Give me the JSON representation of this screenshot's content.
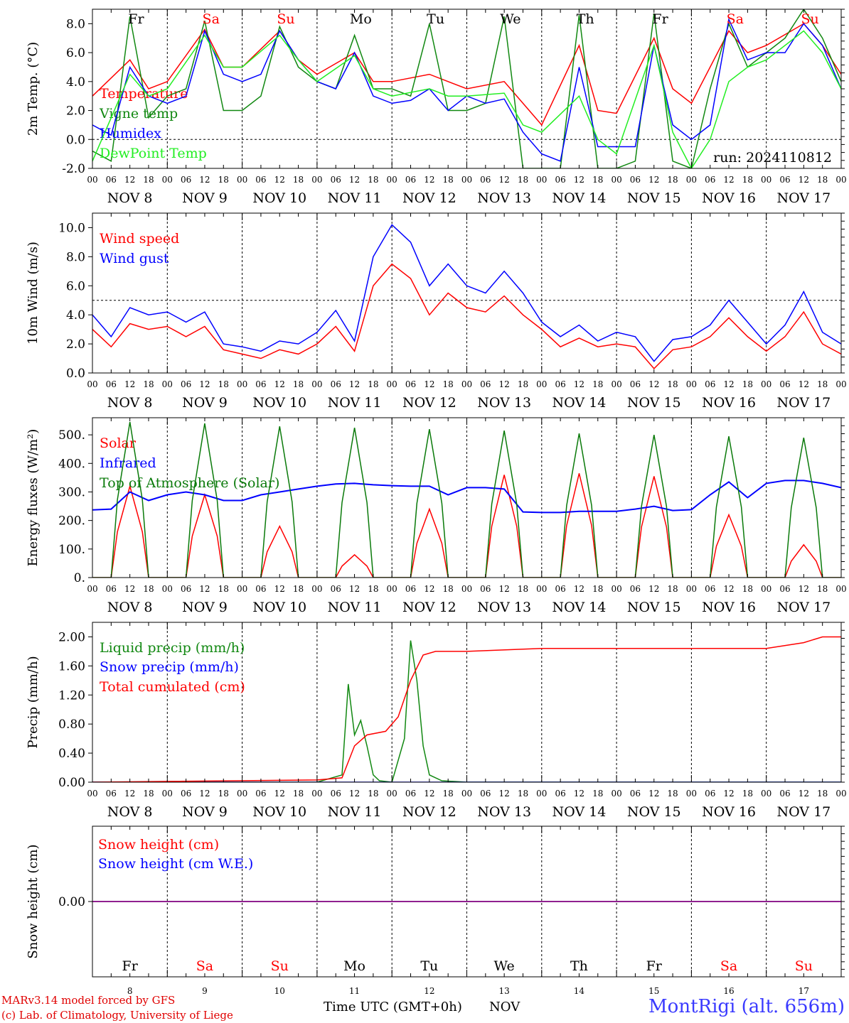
{
  "colors": {
    "red": "#ff0000",
    "green": "#118811",
    "blue": "#0000ff",
    "lightgreen": "#22ee22",
    "darkgreen": "#0a7a0a",
    "purple": "#800080"
  },
  "chart_data": [
    {
      "type": "line",
      "ylabel": "2m Temp. (°C)",
      "ylim": [
        -2,
        9
      ],
      "yticks": [
        "-2.0",
        "0.0",
        "2.0",
        "4.0",
        "6.0",
        "8.0"
      ],
      "ytick_values": [
        -2,
        0,
        2,
        4,
        6,
        8
      ],
      "dashed_y": 0,
      "annotation": "run: 2024110812",
      "series": [
        {
          "name": "Temperature",
          "color": "red",
          "x": [
            0,
            12,
            18,
            24,
            36,
            42,
            48,
            60,
            66,
            72,
            84,
            90,
            96,
            108,
            114,
            120,
            132,
            138,
            144,
            156,
            162,
            168,
            180,
            186,
            192,
            204,
            210,
            216,
            228,
            234,
            240
          ],
          "y": [
            3.0,
            5.5,
            3.5,
            4.0,
            7.6,
            5.0,
            5.0,
            7.5,
            5.5,
            4.5,
            6.0,
            4.0,
            4.0,
            4.5,
            4.0,
            3.5,
            4.0,
            2.5,
            1.0,
            6.5,
            2.0,
            1.8,
            7.0,
            3.5,
            2.5,
            7.5,
            6.0,
            6.5,
            8.0,
            6.5,
            4.5
          ]
        },
        {
          "name": "Vigne temp",
          "color": "green",
          "x": [
            0,
            6,
            12,
            18,
            24,
            30,
            36,
            42,
            48,
            54,
            60,
            66,
            72,
            78,
            84,
            90,
            96,
            102,
            108,
            114,
            120,
            126,
            132,
            138,
            144,
            150,
            156,
            162,
            168,
            174,
            180,
            186,
            192,
            198,
            204,
            210,
            216,
            222,
            228,
            234,
            240
          ],
          "y": [
            -0.8,
            -1.5,
            8.5,
            1.5,
            3.0,
            3.5,
            8.2,
            2.0,
            2.0,
            3.0,
            7.8,
            5.0,
            4.0,
            3.5,
            7.2,
            3.5,
            3.5,
            3.0,
            8.0,
            2.0,
            2.0,
            2.5,
            8.5,
            -2.0,
            -2.0,
            -2.0,
            8.6,
            -2.0,
            -2.0,
            -1.5,
            8.7,
            -1.5,
            -2.0,
            3.5,
            8.0,
            5.0,
            6.0,
            7.0,
            9.0,
            7.0,
            4.0
          ]
        },
        {
          "name": "Humidex",
          "color": "blue",
          "x": [
            0,
            6,
            12,
            18,
            24,
            30,
            36,
            42,
            48,
            54,
            60,
            66,
            72,
            78,
            84,
            90,
            96,
            102,
            108,
            114,
            120,
            126,
            132,
            138,
            144,
            150,
            156,
            162,
            168,
            174,
            180,
            186,
            192,
            198,
            204,
            210,
            216,
            222,
            228,
            234,
            240
          ],
          "y": [
            1.0,
            0.3,
            5.0,
            3.0,
            2.5,
            3.0,
            7.5,
            4.5,
            4.0,
            4.5,
            7.5,
            5.5,
            4.0,
            3.5,
            6.0,
            3.0,
            2.5,
            2.7,
            3.5,
            2.0,
            3.0,
            2.5,
            2.8,
            0.5,
            -1.0,
            -1.5,
            5.0,
            -0.5,
            -0.5,
            -0.5,
            6.5,
            1.0,
            0.0,
            1.0,
            8.3,
            5.5,
            6.0,
            6.0,
            8.0,
            6.5,
            3.5
          ]
        },
        {
          "name": "DewPoint Temp",
          "color": "lightgreen",
          "x": [
            0,
            12,
            18,
            24,
            36,
            42,
            48,
            60,
            66,
            72,
            84,
            90,
            96,
            108,
            114,
            120,
            132,
            138,
            144,
            156,
            162,
            168,
            180,
            186,
            192,
            198,
            204,
            210,
            216,
            228,
            234,
            240
          ],
          "y": [
            -1.5,
            4.5,
            3.0,
            3.5,
            7.2,
            5.0,
            5.0,
            7.2,
            5.5,
            4.0,
            5.8,
            3.5,
            3.0,
            3.5,
            3.0,
            3.0,
            3.2,
            1.0,
            0.5,
            3.0,
            0.0,
            -1.0,
            6.5,
            0.5,
            -2.0,
            0.0,
            4.0,
            5.0,
            5.5,
            7.5,
            6.0,
            3.5
          ]
        }
      ]
    },
    {
      "type": "line",
      "ylabel": "10m Wind (m/s)",
      "ylim": [
        0,
        11
      ],
      "yticks": [
        "0.0",
        "2.0",
        "4.0",
        "6.0",
        "8.0",
        "10.0"
      ],
      "ytick_values": [
        0,
        2,
        4,
        6,
        8,
        10
      ],
      "dashed_y": 5,
      "series": [
        {
          "name": "Wind speed",
          "color": "red",
          "x": [
            0,
            6,
            12,
            18,
            24,
            30,
            36,
            42,
            48,
            54,
            60,
            66,
            72,
            78,
            84,
            90,
            96,
            102,
            108,
            114,
            120,
            126,
            132,
            138,
            144,
            150,
            156,
            162,
            168,
            174,
            180,
            186,
            192,
            198,
            204,
            210,
            216,
            222,
            228,
            234,
            240
          ],
          "y": [
            3.0,
            1.8,
            3.4,
            3.0,
            3.2,
            2.5,
            3.2,
            1.6,
            1.3,
            1.0,
            1.6,
            1.3,
            2.0,
            3.2,
            1.5,
            6.0,
            7.5,
            6.5,
            4.0,
            5.5,
            4.5,
            4.2,
            5.3,
            4.0,
            3.0,
            1.8,
            2.4,
            1.8,
            2.0,
            1.8,
            0.3,
            1.6,
            1.8,
            2.5,
            3.8,
            2.5,
            1.5,
            2.5,
            4.2,
            2.0,
            1.3
          ]
        },
        {
          "name": "Wind gust",
          "color": "blue",
          "x": [
            0,
            6,
            12,
            18,
            24,
            30,
            36,
            42,
            48,
            54,
            60,
            66,
            72,
            78,
            84,
            90,
            96,
            102,
            108,
            114,
            120,
            126,
            132,
            138,
            144,
            150,
            156,
            162,
            168,
            174,
            180,
            186,
            192,
            198,
            204,
            210,
            216,
            222,
            228,
            234,
            240
          ],
          "y": [
            4.0,
            2.5,
            4.5,
            4.0,
            4.2,
            3.5,
            4.2,
            2.0,
            1.8,
            1.5,
            2.2,
            2.0,
            2.8,
            4.3,
            2.2,
            8.0,
            10.2,
            9.0,
            6.0,
            7.5,
            6.0,
            5.5,
            7.0,
            5.5,
            3.5,
            2.5,
            3.3,
            2.2,
            2.8,
            2.5,
            0.8,
            2.3,
            2.5,
            3.3,
            5.0,
            3.5,
            2.0,
            3.3,
            5.6,
            2.8,
            2.0
          ]
        }
      ]
    },
    {
      "type": "line",
      "ylabel": "Energy fluxes (W/m²)",
      "ylim": [
        0,
        560
      ],
      "yticks": [
        "0.",
        "100.",
        "200.",
        "300.",
        "400.",
        "500."
      ],
      "ytick_values": [
        0,
        100,
        200,
        300,
        400,
        500
      ],
      "series": [
        {
          "name": "Solar",
          "color": "red",
          "peak_hours": [
            12,
            36,
            60,
            84,
            108,
            132,
            156,
            180,
            204,
            228
          ],
          "peaks": [
            320,
            290,
            180,
            80,
            240,
            360,
            365,
            355,
            220,
            115
          ]
        },
        {
          "name": "Infrared",
          "color": "blue",
          "x": [
            0,
            6,
            12,
            18,
            24,
            30,
            36,
            42,
            48,
            54,
            60,
            66,
            72,
            78,
            84,
            90,
            96,
            102,
            108,
            114,
            120,
            126,
            132,
            138,
            144,
            150,
            156,
            162,
            168,
            174,
            180,
            186,
            192,
            198,
            204,
            210,
            216,
            222,
            228,
            234,
            240
          ],
          "y": [
            237,
            240,
            300,
            270,
            290,
            300,
            290,
            270,
            270,
            290,
            300,
            310,
            320,
            328,
            330,
            325,
            322,
            320,
            320,
            290,
            315,
            315,
            310,
            230,
            228,
            228,
            232,
            232,
            232,
            240,
            250,
            235,
            238,
            290,
            335,
            280,
            330,
            340,
            340,
            330,
            315
          ]
        },
        {
          "name": "Top of Atmosphere (Solar)",
          "color": "darkgreen",
          "peak_hours": [
            12,
            36,
            60,
            84,
            108,
            132,
            156,
            180,
            204,
            228
          ],
          "peaks": [
            545,
            540,
            530,
            525,
            520,
            515,
            505,
            500,
            495,
            490
          ]
        }
      ]
    },
    {
      "type": "line",
      "ylabel": "Precip (mm/h)",
      "ylim": [
        0,
        2.2
      ],
      "yticks": [
        "0.00",
        "0.40",
        "0.80",
        "1.20",
        "1.60",
        "2.00"
      ],
      "ytick_values": [
        0,
        0.4,
        0.8,
        1.2,
        1.6,
        2.0
      ],
      "series": [
        {
          "name": "Liquid precip (mm/h)",
          "color": "green",
          "x": [
            0,
            72,
            80,
            82,
            84,
            86,
            88,
            90,
            92,
            96,
            100,
            102,
            104,
            106,
            108,
            112,
            120,
            240
          ],
          "y": [
            0,
            0,
            0.1,
            1.35,
            0.65,
            0.85,
            0.5,
            0.1,
            0.02,
            0,
            0.6,
            1.95,
            1.4,
            0.5,
            0.1,
            0.02,
            0,
            0
          ]
        },
        {
          "name": "Snow precip (mm/h)",
          "color": "blue",
          "x": [
            0,
            240
          ],
          "y": [
            0,
            0
          ]
        },
        {
          "name": "Total cumulated (cm)",
          "color": "red",
          "x": [
            0,
            72,
            80,
            84,
            88,
            94,
            98,
            102,
            106,
            110,
            120,
            144,
            168,
            192,
            216,
            228,
            234,
            240
          ],
          "y": [
            0,
            0.03,
            0.06,
            0.5,
            0.65,
            0.7,
            0.9,
            1.4,
            1.75,
            1.8,
            1.8,
            1.84,
            1.84,
            1.84,
            1.84,
            1.92,
            2.0,
            2.0
          ]
        }
      ]
    },
    {
      "type": "line",
      "ylabel": "Snow height (cm)",
      "ylim": [
        -1,
        1
      ],
      "yticks": [
        "0.00"
      ],
      "ytick_values": [
        0
      ],
      "series": [
        {
          "name": "Snow height (cm)",
          "color": "red",
          "x": [
            0,
            240
          ],
          "y": [
            0,
            0
          ]
        },
        {
          "name": "Snow height (cm W.E.)",
          "color": "blue",
          "x": [
            0,
            240
          ],
          "y": [
            0,
            0
          ]
        }
      ]
    }
  ],
  "x_axis": {
    "hour_ticks": [
      "00",
      "06",
      "12",
      "18"
    ],
    "end_tick": "00",
    "dates": [
      "NOV  8",
      "NOV  9",
      "NOV 10",
      "NOV 11",
      "NOV 12",
      "NOV 13",
      "NOV 14",
      "NOV 15",
      "NOV 16",
      "NOV 17"
    ],
    "weekdays": [
      "Fr",
      "Sa",
      "Su",
      "Mo",
      "Tu",
      "We",
      "Th",
      "Fr",
      "Sa",
      "Su"
    ],
    "weekend": [
      false,
      true,
      true,
      false,
      false,
      false,
      false,
      false,
      true,
      true
    ],
    "day_numbers": [
      "8",
      "9",
      "10",
      "11",
      "12",
      "13",
      "14",
      "15",
      "16",
      "17"
    ],
    "title": "Time UTC (GMT+0h)",
    "month": "NOV"
  },
  "footer": {
    "credit1": "MARv3.14 model forced by GFS",
    "credit2": "(c) Lab. of Climatology, University of Liege",
    "station": "MontRigi (alt. 656m)"
  }
}
